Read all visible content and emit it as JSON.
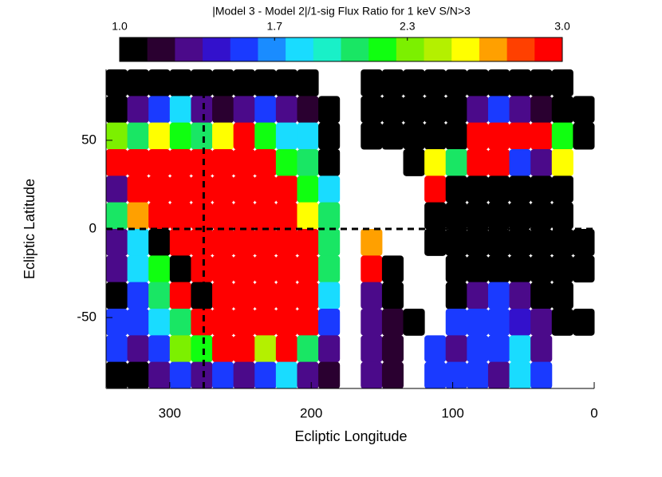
{
  "chart_data": {
    "type": "heatmap",
    "title": "|Model 3 - Model 2|/1-sig Flux Ratio for 1 keV S/N>3",
    "x_label": "Ecliptic Longitude",
    "y_label": "Ecliptic Latitude",
    "xlim": [
      345,
      0
    ],
    "ylim": [
      -90,
      90
    ],
    "xticks": [
      300,
      200,
      100,
      0
    ],
    "yticks": [
      50,
      0,
      -50
    ],
    "xbins": [
      345,
      330,
      315,
      300,
      285,
      270,
      255,
      240,
      225,
      210,
      195,
      180,
      165,
      150,
      135,
      120,
      105,
      90,
      75,
      60,
      45,
      30,
      15,
      0
    ],
    "ybins": [
      90,
      75,
      60,
      45,
      30,
      15,
      0,
      -15,
      -30,
      -45,
      -60,
      -75,
      -90
    ],
    "values": [
      [
        1,
        1,
        1.1,
        1,
        1,
        1,
        1,
        1,
        1,
        1,
        null,
        null,
        1,
        1,
        1,
        1,
        1,
        1,
        1,
        1,
        1,
        1,
        null
      ],
      [
        1,
        1.3,
        1.5,
        1.8,
        1.3,
        1.2,
        1.3,
        1.5,
        1.3,
        1.2,
        1,
        null,
        1,
        1,
        1,
        1,
        1,
        1.3,
        1.5,
        1.3,
        1.2,
        1,
        1
      ],
      [
        2.3,
        2.0,
        2.5,
        2.2,
        2.0,
        2.6,
        3,
        2.2,
        1.8,
        1.8,
        1,
        null,
        1,
        1,
        1,
        1,
        1,
        3,
        3,
        3,
        3,
        2.2,
        1
      ],
      [
        3,
        3,
        3,
        3,
        3,
        3,
        3,
        3,
        2.2,
        2.0,
        1,
        null,
        null,
        null,
        1,
        2.5,
        2,
        3,
        3,
        1.5,
        1.3,
        2.5,
        null
      ],
      [
        1.3,
        3,
        3,
        3,
        3,
        3,
        3,
        3,
        3,
        2.2,
        1.8,
        null,
        null,
        null,
        null,
        3,
        1,
        1,
        1,
        1,
        1,
        1,
        null
      ],
      [
        2.0,
        2.7,
        3,
        3,
        3,
        3,
        3,
        3,
        3,
        2.5,
        2.0,
        null,
        null,
        null,
        null,
        1,
        1,
        1,
        1,
        1,
        1,
        1,
        null
      ],
      [
        1.3,
        1.8,
        1,
        3,
        3,
        3,
        3,
        3,
        3,
        3,
        2.0,
        null,
        2.7,
        null,
        null,
        1,
        1,
        1,
        1,
        1,
        1,
        1,
        1
      ],
      [
        1.3,
        1.8,
        2.2,
        1,
        3,
        3,
        3,
        3,
        3,
        3,
        2.0,
        null,
        3,
        1,
        null,
        null,
        1,
        1,
        1,
        1,
        1,
        1,
        1
      ],
      [
        1,
        1.5,
        2.0,
        3,
        1,
        3,
        3,
        3,
        3,
        3,
        1.8,
        null,
        1.3,
        1,
        null,
        null,
        1,
        1.3,
        1.5,
        1.3,
        1,
        1,
        null
      ],
      [
        1.5,
        1.6,
        1.8,
        2.0,
        3,
        3,
        3,
        3,
        3,
        3,
        1.5,
        null,
        1.3,
        1.2,
        1,
        null,
        1.5,
        1.5,
        1.6,
        1.4,
        1.3,
        1,
        1
      ],
      [
        1.5,
        1.3,
        1.6,
        2.3,
        2.2,
        3,
        3,
        2.4,
        3,
        2.0,
        1.3,
        null,
        1.3,
        1.2,
        null,
        1.5,
        1.3,
        1.5,
        1.6,
        1.8,
        1.3,
        null,
        null
      ],
      [
        1,
        1,
        1.3,
        1.5,
        1.3,
        1.6,
        1.3,
        1.5,
        1.8,
        1.3,
        1.2,
        null,
        1.3,
        1.2,
        null,
        1.5,
        1.5,
        1.5,
        1.3,
        1.8,
        1.5,
        null,
        null
      ]
    ],
    "clim": [
      1,
      3
    ],
    "colorbar_ticks": [
      {
        "value": 1,
        "label": "1.0"
      },
      1.7,
      2.3,
      {
        "value": 3,
        "label": "3.0"
      }
    ],
    "colorscale": [
      "#000000",
      "#2a0030",
      "#4b0a8a",
      "#3311cc",
      "#1a3aff",
      "#1a8cff",
      "#19dcff",
      "#19f0c8",
      "#19e664",
      "#10ff10",
      "#7cf000",
      "#b4f000",
      "#ffff00",
      "#ffa000",
      "#ff4000",
      "#ff0000"
    ],
    "vlines": [
      276
    ],
    "hlines": [
      0
    ]
  }
}
